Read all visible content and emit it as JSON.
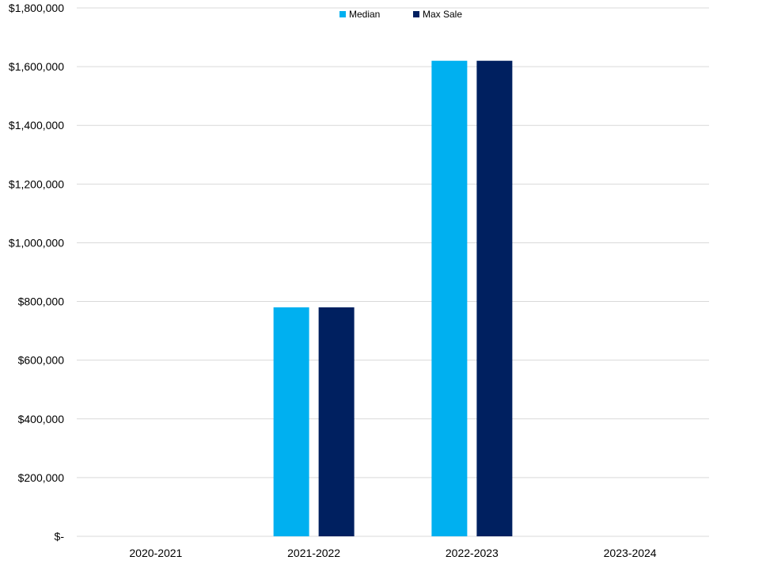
{
  "chart_data": {
    "type": "bar",
    "categories": [
      "2020-2021",
      "2021-2022",
      "2022-2023",
      "2023-2024"
    ],
    "series": [
      {
        "name": "Median",
        "values": [
          0,
          780000,
          1620000,
          0
        ],
        "color": "#00B0F0"
      },
      {
        "name": "Max Sale",
        "values": [
          0,
          780000,
          1620000,
          0
        ],
        "color": "#002060"
      }
    ],
    "ylim": [
      0,
      1800000
    ],
    "yticks": [
      0,
      200000,
      400000,
      600000,
      800000,
      1000000,
      1200000,
      1400000,
      1600000,
      1800000
    ],
    "ytick_labels": [
      "$-",
      "$200,000",
      "$400,000",
      "$600,000",
      "$800,000",
      "$1,000,000",
      "$1,200,000",
      "$1,400,000",
      "$1,600,000",
      "$1,800,000"
    ],
    "title": "",
    "xlabel": "",
    "ylabel": "",
    "grid": true,
    "legend_position": "top-center",
    "gridline_color": "#D9D9D9"
  }
}
